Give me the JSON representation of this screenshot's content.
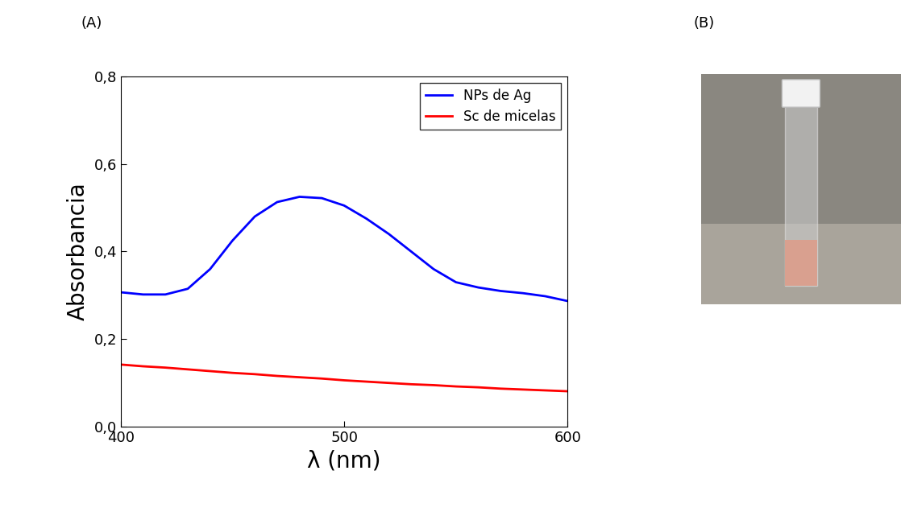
{
  "chart_data": {
    "type": "line",
    "annotations": [
      "(A)",
      "(B)"
    ],
    "x_label": "λ (nm)",
    "y_label": "Absorbancia",
    "x": [
      400,
      410,
      420,
      430,
      440,
      450,
      460,
      470,
      480,
      490,
      500,
      510,
      520,
      530,
      540,
      550,
      560,
      570,
      580,
      590,
      600
    ],
    "series": [
      {
        "name": "NPs de Ag",
        "color": "#0000ff",
        "values": [
          0.307,
          0.302,
          0.302,
          0.315,
          0.36,
          0.425,
          0.48,
          0.513,
          0.525,
          0.522,
          0.505,
          0.475,
          0.44,
          0.4,
          0.36,
          0.33,
          0.318,
          0.31,
          0.305,
          0.298,
          0.287
        ]
      },
      {
        "name": "Sc de micelas",
        "color": "#ff0000",
        "values": [
          0.142,
          0.138,
          0.135,
          0.131,
          0.127,
          0.123,
          0.12,
          0.116,
          0.113,
          0.11,
          0.106,
          0.103,
          0.1,
          0.097,
          0.095,
          0.092,
          0.09,
          0.087,
          0.085,
          0.083,
          0.081
        ]
      }
    ],
    "xlim": [
      400,
      600
    ],
    "xticks": [
      400,
      500,
      600
    ],
    "ylim": [
      0.0,
      0.8
    ],
    "yticks": [
      {
        "value": 0.0,
        "label": "0,0"
      },
      {
        "value": 0.2,
        "label": "0,2"
      },
      {
        "value": 0.4,
        "label": "0,4"
      },
      {
        "value": 0.6,
        "label": "0,6"
      },
      {
        "value": 0.8,
        "label": "0,8"
      }
    ],
    "legend": "upper right",
    "grid": false
  }
}
